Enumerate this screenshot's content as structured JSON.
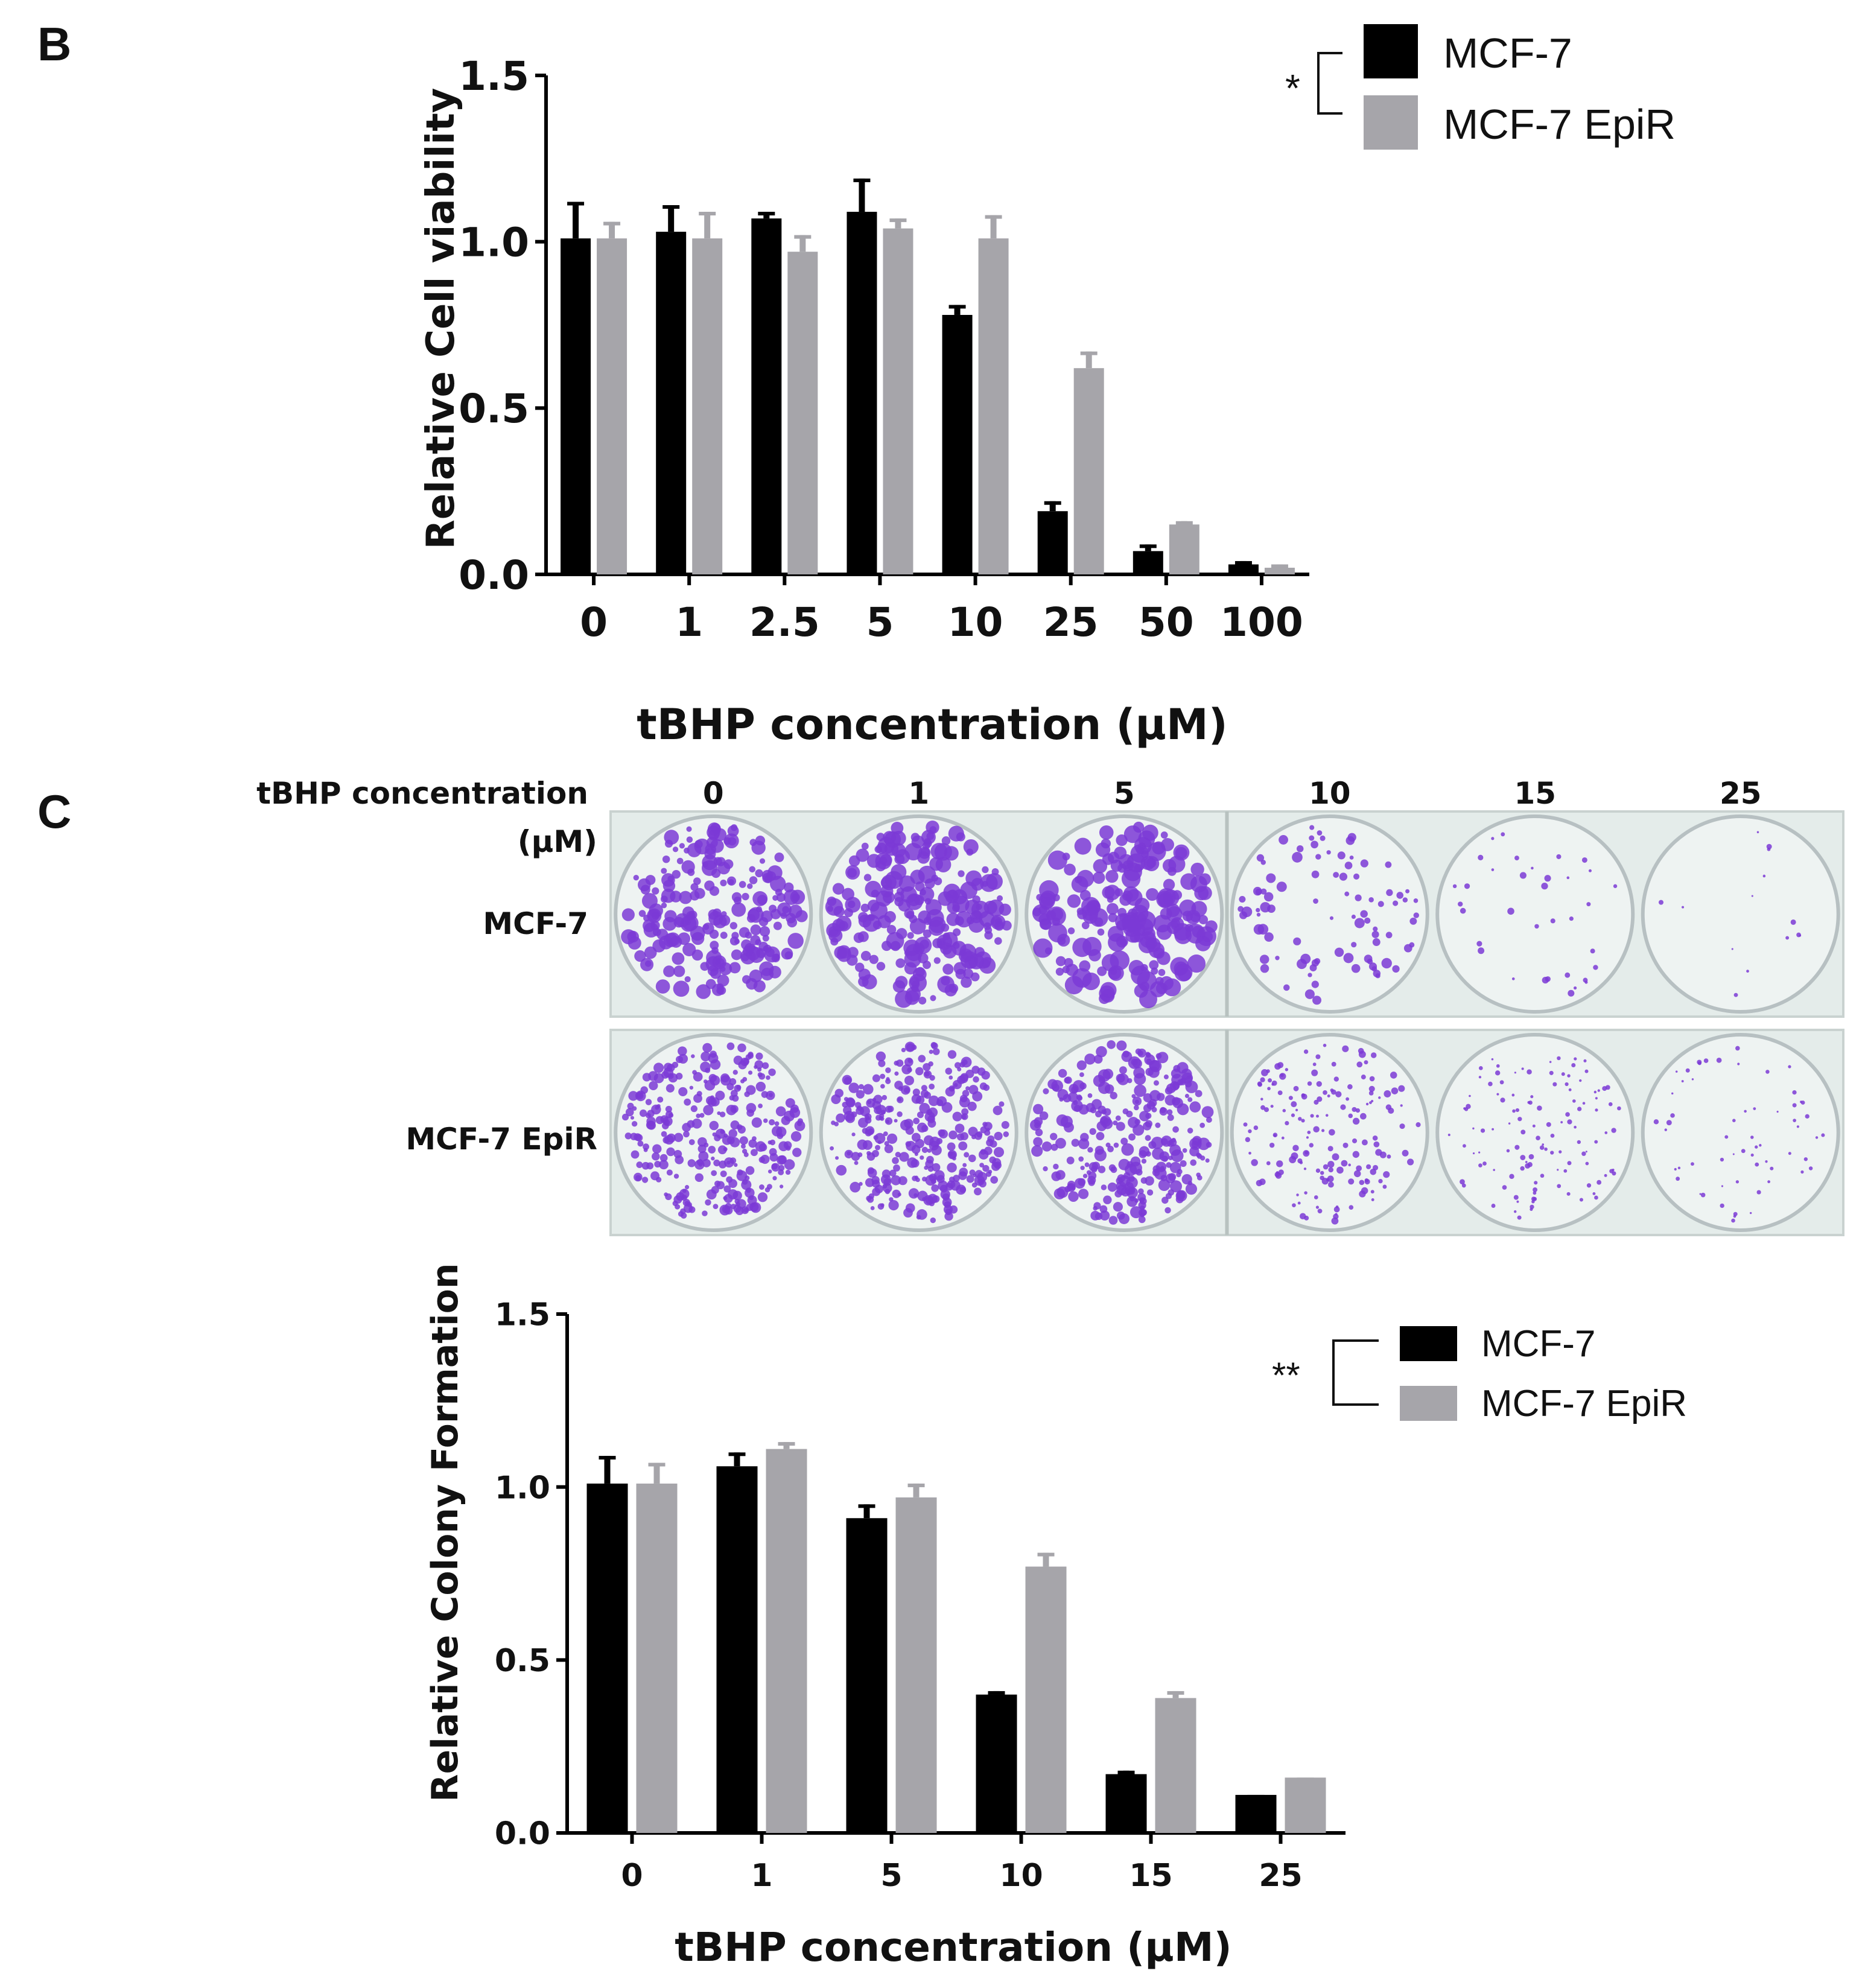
{
  "panel_b_letter": "B",
  "panel_c_letter": "C",
  "colors": {
    "mcf7": "#000000",
    "epir": "#a6a5aa",
    "plate_bg": "#e4ecea",
    "colony": "#7b3ad6"
  },
  "photo": {
    "header_label_line1": "tBHP concentration",
    "header_label_line2": "(μM)",
    "columns": [
      "0",
      "1",
      "5",
      "10",
      "15",
      "25"
    ],
    "rows": [
      "MCF-7",
      "MCF-7 EpiR"
    ]
  },
  "chart_data": [
    {
      "type": "bar",
      "panel": "B",
      "title": "",
      "xlabel": "tBHP concentration (μM)",
      "ylabel": "Relative Cell viability",
      "categories": [
        "0",
        "1",
        "2.5",
        "5",
        "10",
        "25",
        "50",
        "100"
      ],
      "ylim": [
        0,
        1.5
      ],
      "yticks": [
        "0.0",
        "0.5",
        "1.0",
        "1.5"
      ],
      "series": [
        {
          "name": "MCF-7",
          "color": "#000000",
          "values": [
            1.01,
            1.03,
            1.07,
            1.09,
            0.78,
            0.19,
            0.07,
            0.03
          ],
          "errors": [
            0.11,
            0.08,
            0.02,
            0.1,
            0.03,
            0.03,
            0.02,
            0.01
          ]
        },
        {
          "name": "MCF-7 EpiR",
          "color": "#a6a5aa",
          "values": [
            1.01,
            1.01,
            0.97,
            1.04,
            1.01,
            0.62,
            0.15,
            0.02
          ],
          "errors": [
            0.05,
            0.08,
            0.05,
            0.03,
            0.07,
            0.05,
            0.01,
            0.01
          ]
        }
      ],
      "significance": "*",
      "legend": "top-right",
      "grid": false
    },
    {
      "type": "bar",
      "panel": "C",
      "title": "",
      "xlabel": "tBHP concentration (μM)",
      "ylabel": "Relative Colony Formation",
      "categories": [
        "0",
        "1",
        "5",
        "10",
        "15",
        "25"
      ],
      "ylim": [
        0,
        1.5
      ],
      "yticks": [
        "0.0",
        "0.5",
        "1.0",
        "1.5"
      ],
      "series": [
        {
          "name": "MCF-7",
          "color": "#000000",
          "values": [
            1.01,
            1.06,
            0.91,
            0.4,
            0.17,
            0.11
          ],
          "errors": [
            0.08,
            0.04,
            0.04,
            0.01,
            0.01,
            0.0
          ]
        },
        {
          "name": "MCF-7 EpiR",
          "color": "#a6a5aa",
          "values": [
            1.01,
            1.11,
            0.97,
            0.77,
            0.39,
            0.16
          ],
          "errors": [
            0.06,
            0.02,
            0.04,
            0.04,
            0.02,
            0.0
          ]
        }
      ],
      "significance": "**",
      "legend": "top-right",
      "grid": false
    }
  ]
}
